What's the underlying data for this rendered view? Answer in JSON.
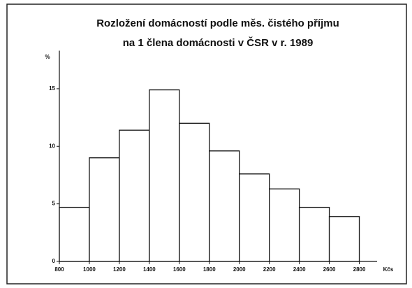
{
  "chart_data": {
    "type": "histogram",
    "title": [
      "Rozložení domácností podle měs. čistého příjmu",
      "na 1 člena domácnosti v ČSR v r. 1989"
    ],
    "y_label": "%",
    "x_label": "Kčs",
    "bins": [
      800,
      1000,
      1200,
      1400,
      1600,
      1800,
      2000,
      2200,
      2400,
      2600,
      2800
    ],
    "values": [
      4.7,
      9.0,
      11.4,
      14.9,
      12.0,
      9.6,
      7.6,
      6.3,
      4.7,
      3.9
    ],
    "color": "#ffffff",
    "xlim": [
      800,
      2900
    ],
    "xticks": [
      800,
      1000,
      1200,
      1400,
      1600,
      1800,
      2000,
      2200,
      2400,
      2600,
      2800
    ],
    "ylim": [
      0,
      18
    ],
    "yticks": [
      0,
      5,
      10,
      15
    ]
  }
}
